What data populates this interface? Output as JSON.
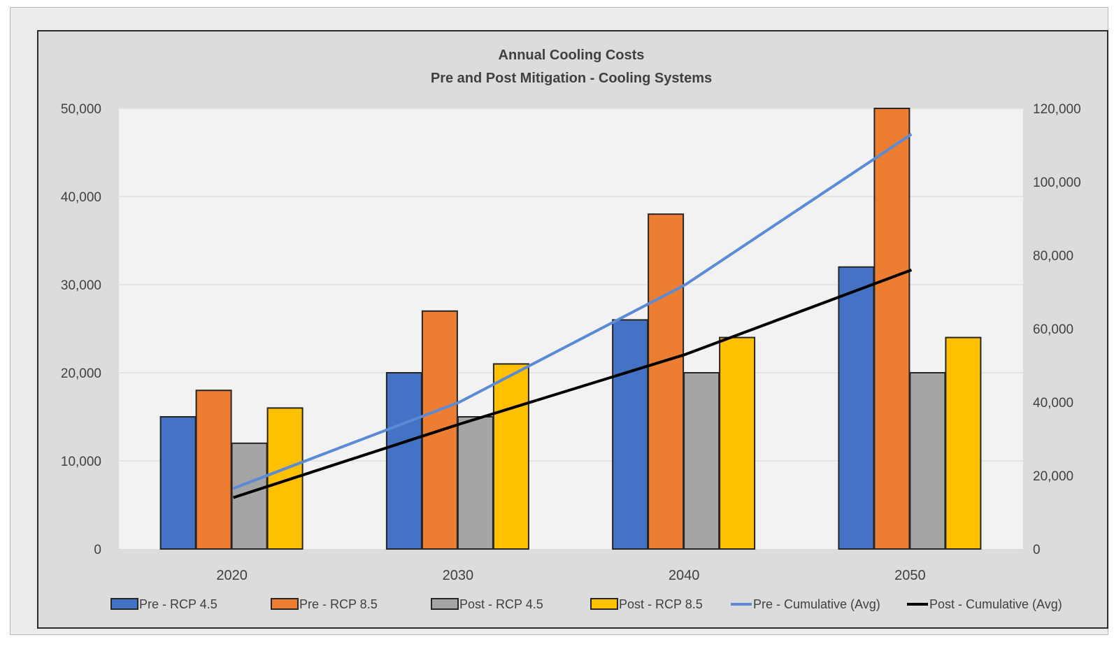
{
  "chart_data": {
    "type": "bar",
    "title": "Annual Cooling Costs",
    "subtitle": "Pre and Post Mitigation - Cooling Systems",
    "categories": [
      "2020",
      "2030",
      "2040",
      "2050"
    ],
    "y_left": {
      "ylim": [
        0,
        50000
      ],
      "ticks": [
        "0",
        "10,000",
        "20,000",
        "30,000",
        "40,000",
        "50,000"
      ]
    },
    "y_right": {
      "ylim": [
        0,
        120000
      ],
      "ticks": [
        "0",
        "20,000",
        "40,000",
        "60,000",
        "80,000",
        "100,000",
        "120,000"
      ]
    },
    "grid": true,
    "legend_position": "bottom",
    "series": [
      {
        "name": "Pre - RCP 4.5",
        "kind": "bar",
        "axis": "left",
        "color": "#4472c4",
        "values": [
          15000,
          20000,
          26000,
          32000
        ]
      },
      {
        "name": "Pre - RCP 8.5",
        "kind": "bar",
        "axis": "left",
        "color": "#ed7d31",
        "values": [
          18000,
          27000,
          38000,
          50000
        ]
      },
      {
        "name": "Post - RCP 4.5",
        "kind": "bar",
        "axis": "left",
        "color": "#a5a5a5",
        "values": [
          12000,
          15000,
          20000,
          20000
        ]
      },
      {
        "name": "Post - RCP 8.5",
        "kind": "bar",
        "axis": "left",
        "color": "#ffc000",
        "values": [
          16000,
          21000,
          24000,
          24000
        ]
      },
      {
        "name": "Pre - Cumulative (Avg)",
        "kind": "line",
        "axis": "right",
        "color": "#5b8bd6",
        "values": [
          16500,
          40000,
          72000,
          113000
        ]
      },
      {
        "name": "Post - Cumulative (Avg)",
        "kind": "line",
        "axis": "right",
        "color": "#000000",
        "values": [
          14000,
          34000,
          53000,
          76000
        ]
      }
    ]
  }
}
